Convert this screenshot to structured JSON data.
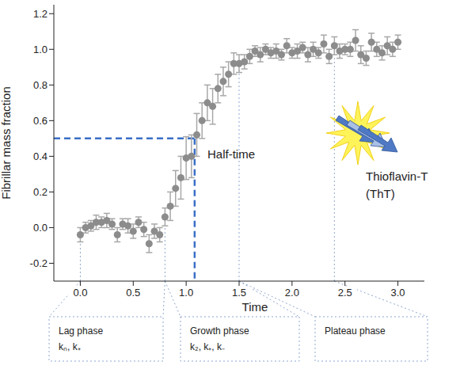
{
  "chart_data": {
    "type": "scatter",
    "x_label": "Time",
    "y_label": "Fibrillar mass fraction",
    "xlim": [
      -0.25,
      3.25
    ],
    "xticks": [
      {
        "value": 0,
        "label": "0.0"
      },
      0.5,
      {
        "value": 1,
        "label": "1.0"
      },
      1.5,
      {
        "value": 2,
        "label": "2.0"
      },
      2.5,
      {
        "value": 3,
        "label": "3.0"
      }
    ],
    "ylim": [
      -0.3,
      1.25
    ],
    "yticks": [
      -0.2,
      {
        "value": 0,
        "label": "0.0"
      },
      0.2,
      0.4,
      0.6,
      0.8,
      {
        "value": 1,
        "label": "1.0"
      },
      1.2
    ],
    "color": "#8c8c8c",
    "marker": "circle",
    "x": [
      0,
      0.05,
      0.1,
      0.15,
      0.2,
      0.25,
      0.3,
      0.35,
      0.4,
      0.45,
      0.5,
      0.55,
      0.6,
      0.65,
      0.7,
      0.75,
      0.8,
      0.85,
      0.9,
      0.95,
      1.0,
      1.05,
      1.1,
      1.15,
      1.2,
      1.25,
      1.3,
      1.35,
      1.4,
      1.45,
      1.5,
      1.55,
      1.6,
      1.65,
      1.7,
      1.75,
      1.8,
      1.85,
      1.9,
      1.95,
      2.0,
      2.05,
      2.1,
      2.15,
      2.2,
      2.25,
      2.3,
      2.35,
      2.4,
      2.45,
      2.5,
      2.55,
      2.6,
      2.65,
      2.7,
      2.75,
      2.8,
      2.85,
      2.9,
      2.95,
      3.0
    ],
    "values": [
      -0.04,
      0.0,
      0.01,
      0.03,
      0.03,
      0.04,
      0.02,
      -0.04,
      0.02,
      0.01,
      -0.02,
      0.03,
      -0.01,
      -0.09,
      -0.02,
      -0.04,
      0.06,
      0.12,
      0.22,
      0.28,
      0.39,
      0.4,
      0.52,
      0.6,
      0.7,
      0.68,
      0.78,
      0.82,
      0.86,
      0.92,
      0.92,
      0.93,
      0.96,
      0.99,
      0.97,
      1.0,
      0.98,
      0.99,
      0.97,
      1.02,
      0.98,
      0.99,
      1.01,
      0.97,
      1.0,
      0.98,
      1.03,
      0.96,
      1.02,
      0.99,
      1.0,
      1.0,
      1.05,
      0.97,
      0.95,
      1.04,
      1.0,
      0.98,
      1.02,
      1.0,
      1.04
    ],
    "errors": [
      0.04,
      0.03,
      0.03,
      0.04,
      0.03,
      0.04,
      0.03,
      0.04,
      0.03,
      0.04,
      0.04,
      0.03,
      0.04,
      0.05,
      0.04,
      0.04,
      0.05,
      0.08,
      0.1,
      0.12,
      0.12,
      0.12,
      0.12,
      0.1,
      0.1,
      0.1,
      0.08,
      0.08,
      0.07,
      0.06,
      0.05,
      0.04,
      0.04,
      0.03,
      0.04,
      0.03,
      0.03,
      0.04,
      0.03,
      0.04,
      0.03,
      0.04,
      0.03,
      0.04,
      0.04,
      0.03,
      0.05,
      0.04,
      0.05,
      0.04,
      0.03,
      0.04,
      0.06,
      0.05,
      0.04,
      0.05,
      0.04,
      0.04,
      0.05,
      0.04,
      0.04
    ],
    "half_time": {
      "label": "Half-time",
      "x": 1.08,
      "y": 0.5
    },
    "phases": [
      {
        "label": "Lag phase",
        "rates": "kₙ, k₊",
        "start": 0,
        "end": 0.8
      },
      {
        "label": "Growth phase",
        "rates": "k₂, k₊, k₋",
        "start": 0.8,
        "end": 1.5
      },
      {
        "label": "Plateau phase",
        "start": 1.5,
        "end": 2.4
      }
    ],
    "annotations": [
      {
        "text": "Thioflavin-T"
      },
      {
        "text": "(ThT)"
      }
    ]
  }
}
